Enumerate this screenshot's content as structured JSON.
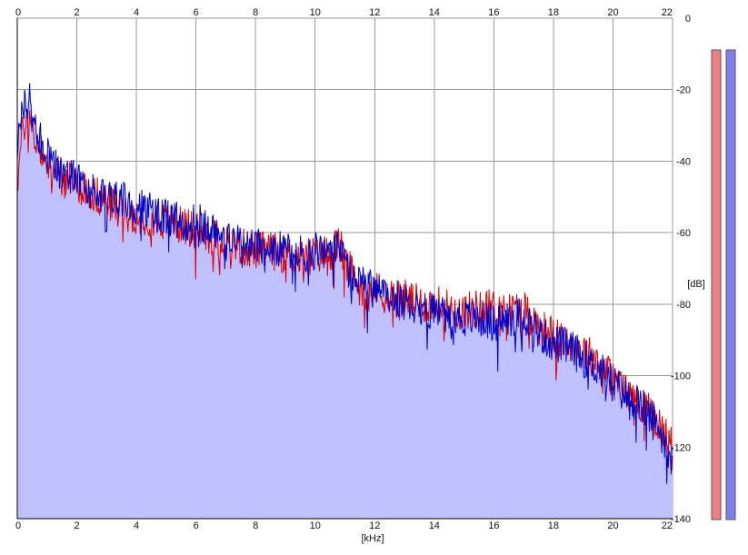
{
  "chart_data": {
    "type": "area",
    "xlabel": "[kHz]",
    "ylabel": "[dB]",
    "xlim": [
      0,
      22
    ],
    "ylim": [
      -140,
      0
    ],
    "x_ticks": [
      0,
      2,
      4,
      6,
      8,
      10,
      12,
      14,
      16,
      18,
      20,
      22
    ],
    "y_ticks": [
      0,
      -20,
      -40,
      -60,
      -80,
      -100,
      -120,
      -140
    ],
    "x_tick_labels": [
      "0",
      "2",
      "4",
      "6",
      "8",
      "10",
      "12",
      "14",
      "16",
      "18",
      "20",
      "22"
    ],
    "y_tick_labels": [
      "0",
      "-20",
      "-40",
      "-60",
      "-80",
      "-100",
      "-120",
      "-140"
    ],
    "grid": true,
    "x": [
      0,
      0.2,
      0.4,
      0.6,
      0.8,
      1,
      1.5,
      2,
      2.5,
      3,
      3.5,
      4,
      4.5,
      5,
      5.5,
      6,
      6.5,
      7,
      7.5,
      8,
      8.5,
      9,
      9.5,
      10,
      10.5,
      10.8,
      11,
      11.5,
      12,
      12.5,
      13,
      13.5,
      14,
      14.5,
      15,
      15.5,
      16,
      16.5,
      17,
      17.5,
      18,
      18.5,
      19,
      19.5,
      20,
      20.5,
      21,
      21.5,
      22
    ],
    "series": [
      {
        "color": "#dd0000",
        "values": [
          -46,
          -30,
          -28,
          -34,
          -36,
          -40,
          -45,
          -46,
          -49,
          -51,
          -53,
          -55,
          -56,
          -57,
          -58,
          -59,
          -61,
          -62,
          -64,
          -65,
          -65,
          -66,
          -67,
          -66,
          -66,
          -63,
          -68,
          -75,
          -76,
          -78,
          -78,
          -80,
          -80,
          -81,
          -82,
          -81,
          -81,
          -82,
          -81,
          -86,
          -89,
          -91,
          -93,
          -96,
          -101,
          -105,
          -108,
          -113,
          -120
        ]
      },
      {
        "color": "#0000c8",
        "values": [
          -35,
          -26,
          -22,
          -32,
          -34,
          -38,
          -44,
          -45,
          -48,
          -49,
          -51,
          -52,
          -54,
          -56,
          -57,
          -57,
          -59,
          -60,
          -62,
          -63,
          -64,
          -65,
          -66,
          -65,
          -65,
          -62,
          -69,
          -74,
          -76,
          -78,
          -79,
          -81,
          -82,
          -83,
          -84,
          -84,
          -85,
          -84,
          -83,
          -88,
          -91,
          -92,
          -95,
          -98,
          -102,
          -106,
          -109,
          -114,
          -122
        ]
      }
    ],
    "meters": [
      {
        "color": "#f08080",
        "level": -9
      },
      {
        "color": "#8080f0",
        "level": -9
      }
    ],
    "colors": {
      "fill": "#c0c0ff",
      "grid": "#9a9a9a",
      "axis": "#000000"
    }
  }
}
